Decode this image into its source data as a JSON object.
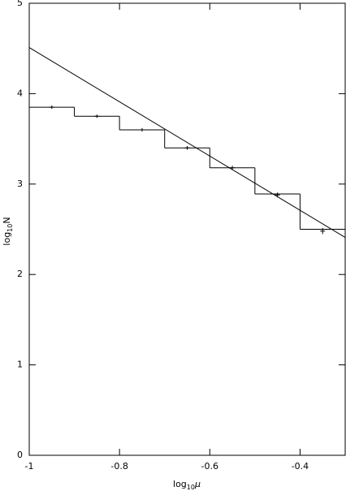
{
  "chart_data": {
    "type": "histogram",
    "x_label": {
      "base": "log",
      "sub": "10",
      "var": "μ"
    },
    "y_label": {
      "base": "log",
      "sub": "10",
      "var": "N"
    },
    "bins": [
      -1,
      -0.9,
      -0.8,
      -0.7,
      -0.6,
      -0.5,
      -0.4,
      -0.3
    ],
    "values": [
      3.85,
      3.75,
      3.6,
      3.4,
      3.18,
      2.89,
      2.5
    ],
    "errorbars": {
      "x": [
        -0.95,
        -0.85,
        -0.75,
        -0.65,
        -0.55,
        -0.45,
        -0.35
      ],
      "values": [
        3.85,
        3.75,
        3.6,
        3.4,
        3.18,
        2.88,
        2.48
      ],
      "errors": [
        0.005,
        0.005,
        0.006,
        0.007,
        0.009,
        0.013,
        0.02
      ]
    },
    "line": {
      "x": [
        -1,
        -0.3
      ],
      "values": [
        4.51,
        2.41
      ]
    },
    "color": "#000000",
    "xlim": [
      -1,
      -0.3
    ],
    "xticks": [
      -1,
      -0.8,
      -0.6,
      -0.4
    ],
    "ylim": [
      0,
      5
    ],
    "yticks": [
      0,
      1,
      2,
      3,
      4,
      5
    ]
  }
}
